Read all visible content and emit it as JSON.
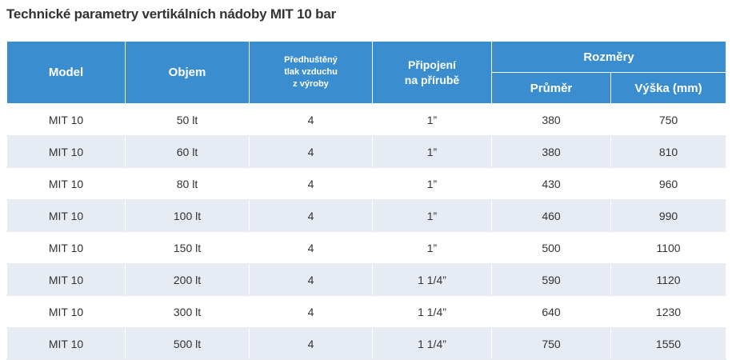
{
  "title": "Technické parametry vertikálních nádoby MIT 10 bar",
  "table": {
    "headers": {
      "model": "Model",
      "volume": "Objem",
      "pressure": "Předhuštěný\ntlak vzduchu\nz výroby",
      "connection": "Připojení\nna přírubě",
      "dimensions": "Rozměry",
      "diameter": "Průměr",
      "height": "Výška (mm)"
    },
    "rows": [
      {
        "model": "MIT 10",
        "volume": "50 lt",
        "pressure": "4",
        "connection": "1”",
        "diameter": "380",
        "height": "750"
      },
      {
        "model": "MIT 10",
        "volume": "60 lt",
        "pressure": "4",
        "connection": "1”",
        "diameter": "380",
        "height": "810"
      },
      {
        "model": "MIT 10",
        "volume": "80 lt",
        "pressure": "4",
        "connection": "1”",
        "diameter": "430",
        "height": "960"
      },
      {
        "model": "MIT 10",
        "volume": "100 lt",
        "pressure": "4",
        "connection": "1”",
        "diameter": "460",
        "height": "990"
      },
      {
        "model": "MIT 10",
        "volume": "150 lt",
        "pressure": "4",
        "connection": "1”",
        "diameter": "500",
        "height": "1100"
      },
      {
        "model": "MIT 10",
        "volume": "200 lt",
        "pressure": "4",
        "connection": "1 1/4”",
        "diameter": "590",
        "height": "1120"
      },
      {
        "model": "MIT 10",
        "volume": "300 lt",
        "pressure": "4",
        "connection": "1 1/4”",
        "diameter": "640",
        "height": "1230"
      },
      {
        "model": "MIT 10",
        "volume": "500 lt",
        "pressure": "4",
        "connection": "1 1/4”",
        "diameter": "750",
        "height": "1550"
      }
    ]
  },
  "colors": {
    "header_bg": "#3a8ed0",
    "header_text": "#ffffff",
    "row_alt_bg": "#e6ebf4",
    "text": "#333333"
  }
}
